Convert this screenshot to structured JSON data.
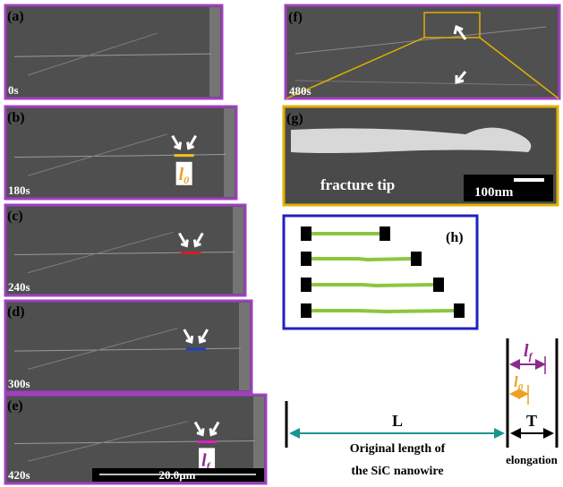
{
  "panels": [
    {
      "label": "(a)",
      "time": "0s"
    },
    {
      "label": "(b)",
      "time": "180s",
      "marker": {
        "l": "l",
        "sub": "0"
      }
    },
    {
      "label": "(c)",
      "time": "240s"
    },
    {
      "label": "(d)",
      "time": "300s"
    },
    {
      "label": "(e)",
      "time": "420s",
      "marker": {
        "l": "l",
        "sub": "f"
      },
      "scale_bar": "20.0μm"
    }
  ],
  "panel_f": {
    "label": "(f)",
    "time": "480s"
  },
  "panel_g": {
    "label": "(g)",
    "caption": "fracture tip",
    "scale_bar": "100nm"
  },
  "panel_h": {
    "label": "(h)"
  },
  "schematic": {
    "L": "L",
    "T": "T",
    "caption": [
      "Original length of",
      "the SiC nanowire"
    ],
    "elongation": "elongation",
    "lf": {
      "l": "l",
      "sub": "f"
    },
    "l0": {
      "l": "l",
      "sub": "0"
    }
  }
}
